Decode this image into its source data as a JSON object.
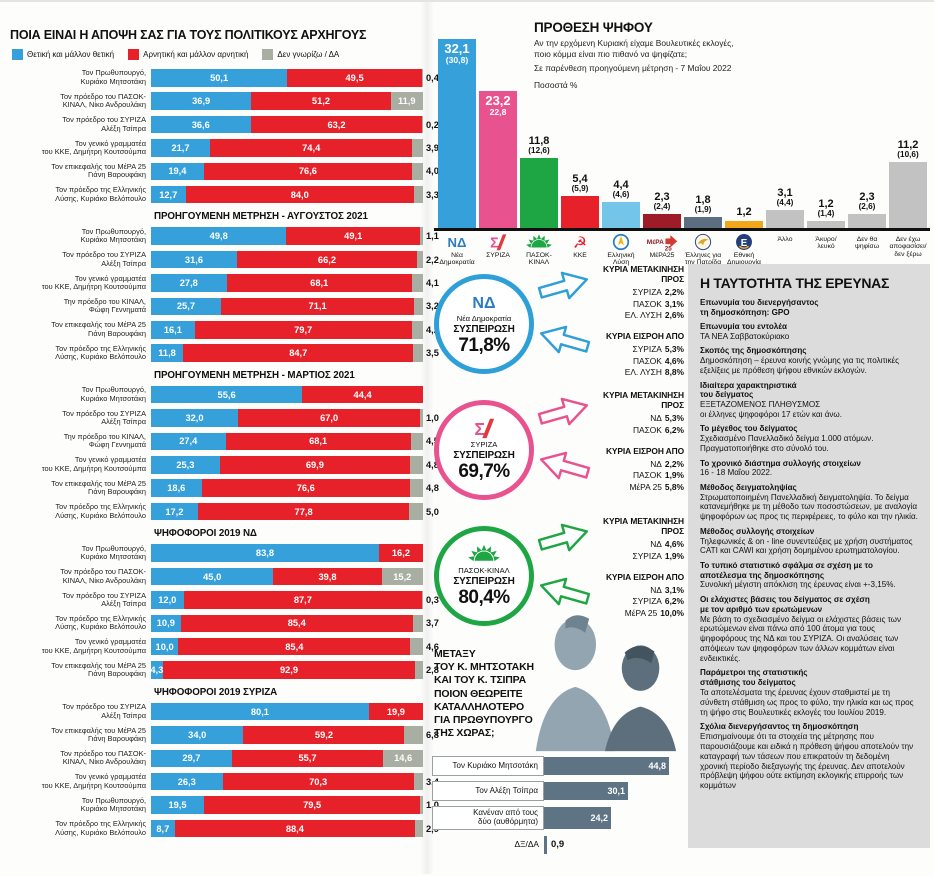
{
  "colors": {
    "positive_blue": "#35a0da",
    "negative_red": "#e62129",
    "dk_gray": "#a9aea3",
    "syriza_pink": "#e8538f",
    "pasok_green": "#1fa644",
    "kke_red": "#e62129",
    "ellysi_lightblue": "#74c6e9",
    "mera25_maroon": "#9e1c27",
    "patrida_slate": "#5c6e7f",
    "ethniki_amber": "#f2a71b",
    "other_gray": "#c2c2c2",
    "panel_gray": "#dcdcdc",
    "pm_slate": "#5e7384"
  },
  "chart_data": [
    {
      "type": "bar",
      "id": "leaders-opinion",
      "stacked": true,
      "orientation": "horizontal",
      "unit": "%",
      "title": "ΠΟΙΑ ΕΙΝΑΙ Η ΑΠΟΨΗ ΣΑΣ ΓΙΑ ΤΟΥΣ ΠΟΛΙΤΙΚΟΥΣ ΑΡΧΗΓΟΥΣ",
      "legend": [
        {
          "label": "Θετική και μάλλον θετική",
          "color": "#35a0da"
        },
        {
          "label": "Αρνητική και μάλλον αρνητική",
          "color": "#e62129"
        },
        {
          "label": "Δεν γνωρίζω / ΔΑ",
          "color": "#a9aea3"
        }
      ],
      "sections": [
        {
          "header": "",
          "rows": [
            {
              "label": "Τον Πρωθυπουργό,\nΚυριάκο Μητσοτάκη",
              "positive": "50,1",
              "negative": "49,5",
              "dk": "0,4"
            },
            {
              "label": "Τον πρόεδρο του ΠΑΣΟΚ-\nΚΙΝΑΛ, Νίκο Ανδρουλάκη",
              "positive": "36,9",
              "negative": "51,2",
              "dk": "11,9"
            },
            {
              "label": "Τον πρόεδρο του ΣΥΡΙΖΑ\nΑλέξη Τσίπρα",
              "positive": "36,6",
              "negative": "63,2",
              "dk": "0,2"
            },
            {
              "label": "Τον γενικό γραμματέα\nτου ΚΚΕ, Δημήτρη Κουτσούμπα",
              "positive": "21,7",
              "negative": "74,4",
              "dk": "3,9"
            },
            {
              "label": "Τον επικεφαλής του ΜέΡΑ 25\nΓιάνη Βαρουφάκη",
              "positive": "19,4",
              "negative": "76,6",
              "dk": "4,0"
            },
            {
              "label": "Τον πρόεδρο της Ελληνικής\nΛύσης, Κυριάκο Βελόπουλο",
              "positive": "12,7",
              "negative": "84,0",
              "dk": "3,3"
            }
          ]
        },
        {
          "header": "ΠΡΟΗΓΟΥΜΕΝΗ ΜΕΤΡΗΣΗ - ΑΥΓΟΥΣΤΟΣ 2021",
          "rows": [
            {
              "label": "Τον Πρωθυπουργό,\nΚυριάκο Μητσοτάκη",
              "positive": "49,8",
              "negative": "49,1",
              "dk": "1,1"
            },
            {
              "label": "Τον πρόεδρο του ΣΥΡΙΖΑ\nΑλέξη Τσίπρα",
              "positive": "31,6",
              "negative": "66,2",
              "dk": "2,2"
            },
            {
              "label": "Τον γενικό γραμματέα\nτου ΚΚΕ, Δημήτρη Κουτσούμπα",
              "positive": "27,8",
              "negative": "68,1",
              "dk": "4,1"
            },
            {
              "label": "Την πρόεδρο του ΚΙΝΑΛ,\nΦώφη Γεννηματά",
              "positive": "25,7",
              "negative": "71,1",
              "dk": "3,2"
            },
            {
              "label": "Τον επικεφαλής του ΜέΡΑ 25\nΓιάνη Βαρουφάκη",
              "positive": "16,1",
              "negative": "79,7",
              "dk": "4,2"
            },
            {
              "label": "Τον πρόεδρο της Ελληνικής\nΛύσης, Κυριάκο Βελόπουλο",
              "positive": "11,8",
              "negative": "84,7",
              "dk": "3,5"
            }
          ]
        },
        {
          "header": "ΠΡΟΗΓΟΥΜΕΝΗ ΜΕΤΡΗΣΗ - ΜΑΡΤΙΟΣ 2021",
          "rows": [
            {
              "label": "Τον Πρωθυπουργό,\nΚυριάκο Μητσοτάκη",
              "positive": "55,6",
              "negative": "44,4",
              "dk": ""
            },
            {
              "label": "Τον πρόεδρο του ΣΥΡΙΖΑ\nΑλέξη Τσίπρα",
              "positive": "32,0",
              "negative": "67,0",
              "dk": "1,0"
            },
            {
              "label": "Την πρόεδρο του ΚΙΝΑΛ,\nΦώφη Γεννηματά",
              "positive": "27,4",
              "negative": "68,1",
              "dk": "4,5"
            },
            {
              "label": "Τον γενικό γραμματέα\nτου ΚΚΕ, Δημήτρη Κουτσούμπα",
              "positive": "25,3",
              "negative": "69,9",
              "dk": "4,8"
            },
            {
              "label": "Τον επικεφαλής του ΜέΡΑ 25\nΓιάνη Βαρουφάκη",
              "positive": "18,6",
              "negative": "76,6",
              "dk": "4,8"
            },
            {
              "label": "Τον πρόεδρο της Ελληνικής\nΛύσης, Κυριάκο Βελόπουλο",
              "positive": "17,2",
              "negative": "77,8",
              "dk": "5,0"
            }
          ]
        },
        {
          "header": "ΨΗΦΟΦΟΡΟΙ 2019 ΝΔ",
          "rows": [
            {
              "label": "Τον Πρωθυπουργό,\nΚυριάκο Μητσοτάκη",
              "positive": "83,8",
              "negative": "16,2",
              "dk": ""
            },
            {
              "label": "Τον πρόεδρο του ΠΑΣΟΚ-\nΚΙΝΑΛ, Νίκο Ανδρουλάκη",
              "positive": "45,0",
              "negative": "39,8",
              "dk": "15,2"
            },
            {
              "label": "Τον πρόεδρο του ΣΥΡΙΖΑ\nΑλέξη Τσίπρα",
              "positive": "12,0",
              "negative": "87,7",
              "dk": "0,3"
            },
            {
              "label": "Τον πρόεδρο της Ελληνικής\nΛύσης, Κυριάκο Βελόπουλο",
              "positive": "10,9",
              "negative": "85,4",
              "dk": "3,7"
            },
            {
              "label": "Τον γενικό γραμματέα\nτου ΚΚΕ, Δημήτρη Κουτσούμπα",
              "positive": "10,0",
              "negative": "85,4",
              "dk": "4,6"
            },
            {
              "label": "Τον επικεφαλής του ΜέΡΑ 25\nΓιάνη Βαρουφάκη",
              "positive": "4,3",
              "negative": "92,9",
              "dk": "2,8"
            }
          ]
        },
        {
          "header": "ΨΗΦΟΦΟΡΟΙ 2019 ΣΥΡΙΖΑ",
          "rows": [
            {
              "label": "Τον πρόεδρο του ΣΥΡΙΖΑ\nΑλέξη Τσίπρα",
              "positive": "80,1",
              "negative": "19,9",
              "dk": ""
            },
            {
              "label": "Τον επικεφαλής του ΜέΡΑ 25\nΓιάνη Βαρουφάκη",
              "positive": "34,0",
              "negative": "59,2",
              "dk": "6,8"
            },
            {
              "label": "Τον πρόεδρο του ΠΑΣΟΚ-\nΚΙΝΑΛ, Νίκο Ανδρουλάκη",
              "positive": "29,7",
              "negative": "55,7",
              "dk": "14,6"
            },
            {
              "label": "Τον γενικό γραμματέα\nτου ΚΚΕ, Δημήτρη Κουτσούμπα",
              "positive": "26,3",
              "negative": "70,3",
              "dk": "3,4"
            },
            {
              "label": "Τον Πρωθυπουργό,\nΚυριάκο Μητσοτάκη",
              "positive": "19,5",
              "negative": "79,5",
              "dk": "1,0"
            },
            {
              "label": "Τον πρόεδρο της Ελληνικής\nΛύσης, Κυριάκο Βελόπουλο",
              "positive": "8,7",
              "negative": "88,4",
              "dk": "2,9"
            }
          ]
        }
      ]
    },
    {
      "type": "bar",
      "id": "vote-intention",
      "orientation": "vertical",
      "unit": "%",
      "title": "ΠΡΟΘΕΣΗ ΨΗΦΟΥ",
      "subtitle": "Αν την ερχόμενη Κυριακή είχαμε Βουλευτικές εκλογές,\nποιο κόμμα είναι πιο πιθανό να ψηφίζατε;",
      "note": "Σε παρένθεση προηγούμενη μέτρηση - 7 Μαΐου 2022",
      "unit_label": "Ποσοστά %",
      "bars": [
        {
          "name": "Νέα\nΔημοκρατία",
          "value": "32,1",
          "prev": "(30,8)",
          "color": "#35a0da",
          "icon": "nd-logo",
          "inside": true
        },
        {
          "name": "ΣΥΡΙΖΑ",
          "value": "23,2",
          "prev": "22,8",
          "color": "#e8538f",
          "icon": "syriza-logo",
          "inside": true
        },
        {
          "name": "ΠΑΣΟΚ-\nΚΙΝΑΛ",
          "value": "11,8",
          "prev": "(12,6)",
          "color": "#1fa644",
          "icon": "pasok-logo"
        },
        {
          "name": "ΚΚΕ",
          "value": "5,4",
          "prev": "(5,9)",
          "color": "#e62129",
          "icon": "kke-logo"
        },
        {
          "name": "Ελληνική\nΛύση",
          "value": "4,4",
          "prev": "(4,6)",
          "color": "#74c6e9",
          "icon": "elysi-logo"
        },
        {
          "name": "ΜέΡΑ25",
          "value": "2,3",
          "prev": "(2,4)",
          "color": "#9e1c27",
          "icon": "mera25-logo"
        },
        {
          "name": "Έλληνες για\nτην Πατρίδα",
          "value": "1,8",
          "prev": "(1,9)",
          "color": "#5c6e7f",
          "icon": "patrida-logo"
        },
        {
          "name": "Εθνική\nΔημιουργία",
          "value": "1,2",
          "prev": "",
          "color": "#f2a71b",
          "icon": "ethniki-logo"
        },
        {
          "name": "Άλλο",
          "value": "3,1",
          "prev": "(4,4)",
          "color": "#c2c2c2"
        },
        {
          "name": "Άκυρο/\nλευκό",
          "value": "1,2",
          "prev": "(1,4)",
          "color": "#c2c2c2"
        },
        {
          "name": "Δεν θα\nψηφίσω",
          "value": "2,3",
          "prev": "(2,6)",
          "color": "#c2c2c2"
        },
        {
          "name": "Δεν έχω\nαποφασίσει/\nδεν ξέρω",
          "value": "11,2",
          "prev": "(10,6)",
          "color": "#c2c2c2"
        }
      ]
    },
    {
      "type": "bar",
      "id": "pm-suitability",
      "orientation": "horizontal",
      "unit": "%",
      "question": "ΜΕΤΑΞΥ\nΤΟΥ Κ. ΜΗΤΣΟΤΑΚΗ\nΚΑΙ ΤΟΥ Κ. ΤΣΙΠΡΑ\nΠΟΙΟΝ ΘΕΩΡΕΙΤΕ\nΚΑΤΑΛΛΗΛΟΤΕΡΟ\nΓΙΑ ΠΡΩΘΥΠΟΥΡΓΟ\nΤΗΣ ΧΩΡΑΣ;",
      "bars": [
        {
          "label": "Τον Κυριάκο Μητσοτάκη",
          "value": "44,8",
          "boxed": true
        },
        {
          "label": "Τον Αλέξη Τσίπρα",
          "value": "30,1",
          "boxed": true
        },
        {
          "label": "Κανέναν από τους\nδύο (αυθόρμητα)",
          "value": "24,2",
          "boxed": true
        },
        {
          "label": "ΔΞ/ΔΑ",
          "value": "0,9",
          "boxed": false
        }
      ]
    }
  ],
  "flows": [
    {
      "party": "Νέα Δημοκρατία",
      "icon": "nd-logo",
      "color": "#2f9fd8",
      "cohesion_label": "ΣΥΣΠΕΙΡΩΣΗ",
      "cohesion": "71,8%",
      "out_header": "ΚΥΡΙΑ ΜΕΤΑΚΙΝΗΣΗ ΠΡΟΣ",
      "out": [
        [
          "ΣΥΡΙΖΑ",
          "2,2%"
        ],
        [
          "ΠΑΣΟΚ",
          "3,1%"
        ],
        [
          "ΕΛ. ΛΥΣΗ",
          "2,6%"
        ]
      ],
      "in_header": "ΚΥΡΙΑ ΕΙΣΡΟΗ ΑΠΟ",
      "in": [
        [
          "ΣΥΡΙΖΑ",
          "5,3%"
        ],
        [
          "ΠΑΣΟΚ",
          "4,6%"
        ],
        [
          "ΕΛ. ΛΥΣΗ",
          "8,8%"
        ]
      ]
    },
    {
      "party": "ΣΥΡΙΖΑ",
      "icon": "syriza-logo",
      "color": "#e8538f",
      "cohesion_label": "ΣΥΣΠΕΙΡΩΣΗ",
      "cohesion": "69,7%",
      "out_header": "ΚΥΡΙΑ ΜΕΤΑΚΙΝΗΣΗ ΠΡΟΣ",
      "out": [
        [
          "ΝΔ",
          "5,3%"
        ],
        [
          "ΠΑΣΟΚ",
          "6,2%"
        ]
      ],
      "in_header": "ΚΥΡΙΑ ΕΙΣΡΟΗ ΑΠΟ",
      "in": [
        [
          "ΝΔ",
          "2,2%"
        ],
        [
          "ΠΑΣΟΚ",
          "1,9%"
        ],
        [
          "ΜέΡΑ 25",
          "5,8%"
        ]
      ]
    },
    {
      "party": "ΠΑΣΟΚ-ΚΙΝΑΛ",
      "icon": "pasok-logo",
      "color": "#1fa644",
      "cohesion_label": "ΣΥΣΠΕΙΡΩΣΗ",
      "cohesion": "80,4%",
      "out_header": "ΚΥΡΙΑ ΜΕΤΑΚΙΝΗΣΗ ΠΡΟΣ",
      "out": [
        [
          "ΝΔ",
          "4,6%"
        ],
        [
          "ΣΥΡΙΖΑ",
          "1,9%"
        ]
      ],
      "in_header": "ΚΥΡΙΑ ΕΙΣΡΟΗ ΑΠΟ",
      "in": [
        [
          "ΝΔ",
          "3,1%"
        ],
        [
          "ΣΥΡΙΖΑ",
          "6,2%"
        ],
        [
          "ΜέΡΑ 25",
          "10,0%"
        ]
      ]
    }
  ],
  "identity": {
    "title": "Η ΤΑΥΤΟΤΗΤΑ ΤΗΣ ΕΡΕΥΝΑΣ",
    "blocks": [
      {
        "h": "Επωνυμία του διενεργήσαντος\nτη δημοσκόπηση: GPO",
        "b": ""
      },
      {
        "h": "Επωνυμία του εντολέα",
        "b": "ΤΑ ΝΕΑ Σαββατοκύριακο"
      },
      {
        "h": "Σκοπός της δημοσκόπησης",
        "b": "Δημοσκόπηση – έρευνα κοινής γνώμης για τις πολιτικές εξελίξεις με πρόθεση ψήφου εθνικών εκλογών."
      },
      {
        "h": "Ιδιαίτερα χαρακτηριστικά\nτου δείγματος",
        "b": "ΕΞΕΤΑΖΟΜΕΝΟΣ ΠΛΗΘΥΣΜΟΣ\nοι έλληνες ψηφοφόροι 17 ετών και άνω."
      },
      {
        "h": "Το μέγεθος του δείγματος",
        "b": "Σχεδιασμένο Πανελλαδικό δείγμα 1.000 ατόμων. Πραγματοποιήθηκε στο σύνολό του."
      },
      {
        "h": "Το χρονικό διάστημα συλλογής στοιχείων",
        "b": "16 - 18 Μαΐου 2022."
      },
      {
        "h": "Μέθοδος δειγματοληψίας",
        "b": "Στρωματοποιημένη Πανελλαδική δειγματοληψία. Το δείγμα κατανεμήθηκε με τη μέθοδο των ποσοστώσεων, με αναλογία ψηφοφόρων ως προς τις περιφέρειες, το φύλο και την ηλικία."
      },
      {
        "h": "Μέθοδος συλλογής στοιχείων",
        "b": "Τηλεφωνικές & on - line συνεντεύξεις με χρήση συστήματος CATI και CAWI και χρήση δομημένου ερωτηματολογίου."
      },
      {
        "h": "Το τυπικό στατιστικό σφάλμα σε σχέση με το αποτέλεσμα της δημοσκόπησης",
        "b": "Συνολική μέγιστη απόκλιση της έρευνας είναι +-3,15%."
      },
      {
        "h": "Οι ελάχιστες βάσεις του δείγματος σε σχέση\nμε τον αριθμό των ερωτώμενων",
        "b": "Με βάση το σχεδιασμένο δείγμα οι ελάχιστες βάσεις των ερωτώμενων είναι πάνω από 100 άτομα για τους ψηφοφόρους της ΝΔ και του ΣΥΡΙΖΑ. Οι αναλύσεις των απόψεων των ψηφοφόρων των άλλων κομμάτων είναι ενδεικτικές."
      },
      {
        "h": "Παράμετροι της στατιστικής\nστάθμισης του δείγματος",
        "b": "Τα αποτελέσματα της έρευνας έχουν σταθμιστεί με τη σύνθετη στάθμιση ως προς το φύλο, την ηλικία και ως προς τη ψήφο στις Βουλευτικές εκλογές του Ιουλίου 2019."
      },
      {
        "h": "Σχόλια διενεργήσαντος τη δημοσκόπηση",
        "b": "Επισημαίνουμε ότι τα στοιχεία της μέτρησης που παρουσιάζουμε και ειδικά η πρόθεση ψήφου αποτελούν την καταγραφή των τάσεων που επικρατούν τη δεδομένη χρονική περίοδο διεξαγωγής της έρευνας. Δεν αποτελούν πρόβλεψη ψήφου ούτε εκτίμηση εκλογικής επιρροής των κομμάτων"
      }
    ]
  }
}
